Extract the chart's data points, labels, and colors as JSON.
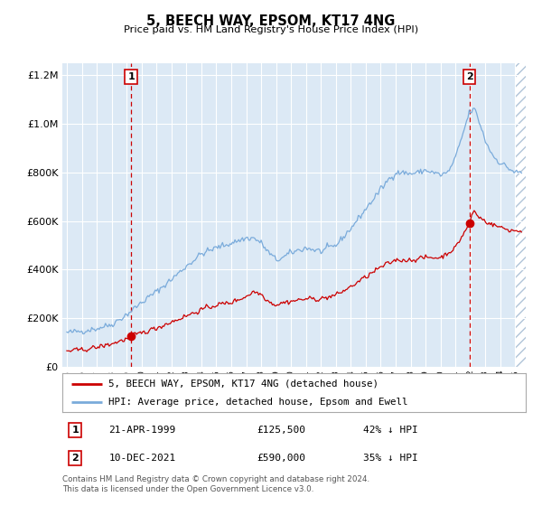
{
  "title": "5, BEECH WAY, EPSOM, KT17 4NG",
  "subtitle": "Price paid vs. HM Land Registry's House Price Index (HPI)",
  "background_color": "#dce9f5",
  "plot_bg_color": "#dce9f5",
  "ylabel_color": "#000000",
  "legend_label_red": "5, BEECH WAY, EPSOM, KT17 4NG (detached house)",
  "legend_label_blue": "HPI: Average price, detached house, Epsom and Ewell",
  "footer": "Contains HM Land Registry data © Crown copyright and database right 2024.\nThis data is licensed under the Open Government Licence v3.0.",
  "transaction1_date": "21-APR-1999",
  "transaction1_price": "£125,500",
  "transaction1_hpi": "42% ↓ HPI",
  "transaction2_date": "10-DEC-2021",
  "transaction2_price": "£590,000",
  "transaction2_hpi": "35% ↓ HPI",
  "transaction1_x": 1999.3,
  "transaction1_y": 125500,
  "transaction2_x": 2021.94,
  "transaction2_y": 590000,
  "ylim": [
    0,
    1250000
  ],
  "xlim_start": 1994.7,
  "xlim_end": 2025.7,
  "red_line_color": "#cc0000",
  "blue_line_color": "#7aabdb",
  "marker_color": "#cc0000"
}
